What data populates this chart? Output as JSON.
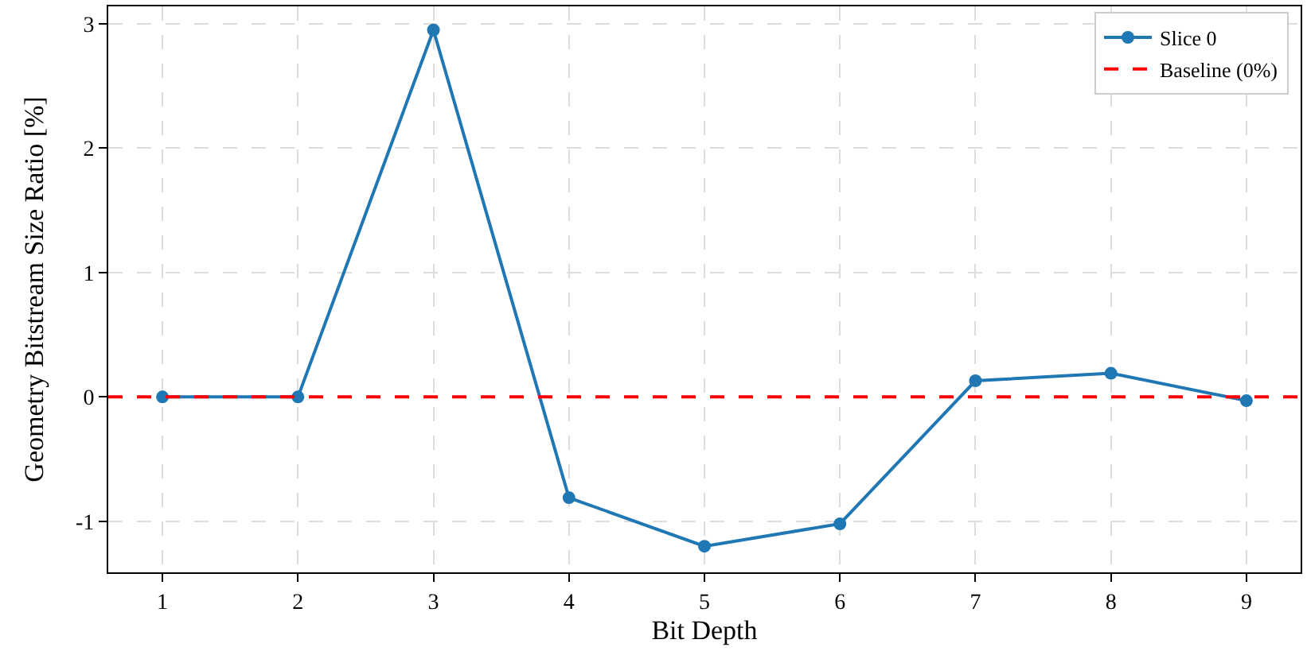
{
  "chart_data": {
    "type": "line",
    "xlabel": "Bit Depth",
    "ylabel": "Geometry Bitstream Size Ratio [%]",
    "x": [
      1,
      2,
      3,
      4,
      5,
      6,
      7,
      8,
      9
    ],
    "series": [
      {
        "name": "Slice 0",
        "color": "#1f77b4",
        "values": [
          0,
          0,
          2.95,
          -0.81,
          -1.2,
          -1.02,
          0.13,
          0.19,
          -0.03
        ]
      }
    ],
    "ref_lines": [
      {
        "axis": "y",
        "value": 0,
        "label": "Baseline (0%)",
        "color": "#ff0000",
        "line_style": "dashed"
      }
    ],
    "xlim": [
      0.6,
      9.4
    ],
    "xticks": [
      1,
      2,
      3,
      4,
      5,
      6,
      7,
      8,
      9
    ],
    "ylim": [
      -1.41,
      3.14
    ],
    "yticks": [
      -1,
      0,
      1,
      2,
      3
    ],
    "grid": true,
    "legend": "top right",
    "marker": "circle",
    "line_style": "solid"
  }
}
